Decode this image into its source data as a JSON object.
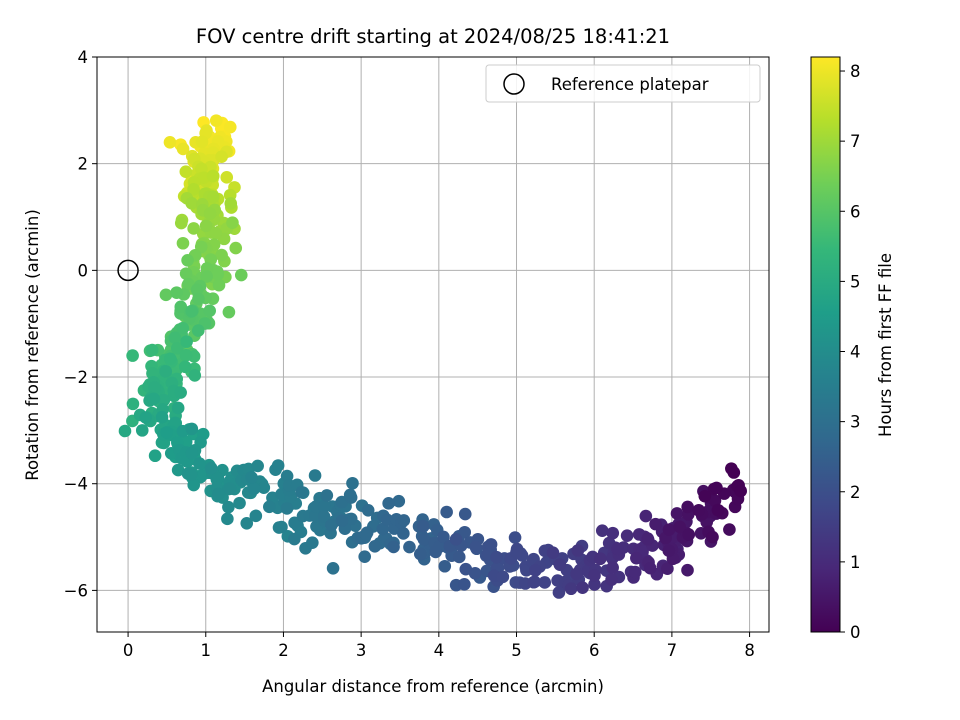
{
  "chart_data": {
    "type": "scatter",
    "title": "FOV centre drift starting at 2024/08/25 18:41:21",
    "xlabel": "Angular distance from reference (arcmin)",
    "ylabel": "Rotation from reference (arcmin)",
    "xlim": [
      -0.4,
      8.25
    ],
    "ylim": [
      -6.78,
      4.0
    ],
    "x_ticks": [
      "0",
      "1",
      "2",
      "3",
      "4",
      "5",
      "6",
      "7",
      "8"
    ],
    "y_ticks": [
      "−6",
      "−4",
      "−2",
      "0",
      "2",
      "4"
    ],
    "grid": true,
    "legend": {
      "location": "upper right",
      "entries": [
        "Reference platepar"
      ]
    },
    "reference_point": {
      "x": 0,
      "y": 0
    },
    "colorbar": {
      "label": "Hours from first FF file",
      "range": [
        0,
        8.2
      ],
      "ticks": [
        "0",
        "1",
        "2",
        "3",
        "4",
        "5",
        "6",
        "7",
        "8"
      ],
      "colormap": "viridis"
    },
    "color_stops": [
      "#440154",
      "#482878",
      "#3e4989",
      "#31688e",
      "#26828e",
      "#1f9e89",
      "#35b779",
      "#6ece58",
      "#b5de2b",
      "#fde725"
    ],
    "trajectory": [
      [
        7.85,
        -4.0,
        0.0
      ],
      [
        7.2,
        -5.0,
        0.5
      ],
      [
        6.6,
        -5.4,
        0.95
      ],
      [
        5.8,
        -5.6,
        1.4
      ],
      [
        5.0,
        -5.5,
        1.85
      ],
      [
        4.2,
        -5.2,
        2.3
      ],
      [
        3.2,
        -4.8,
        2.8
      ],
      [
        2.4,
        -4.5,
        3.3
      ],
      [
        1.6,
        -4.2,
        3.8
      ],
      [
        0.9,
        -3.7,
        4.3
      ],
      [
        0.4,
        -3.0,
        4.8
      ],
      [
        0.45,
        -2.1,
        5.3
      ],
      [
        0.75,
        -1.2,
        5.8
      ],
      [
        0.95,
        -0.1,
        6.4
      ],
      [
        1.05,
        1.0,
        7.0
      ],
      [
        1.0,
        1.8,
        7.6
      ],
      [
        1.05,
        2.6,
        8.2
      ]
    ],
    "total_points": 700
  }
}
